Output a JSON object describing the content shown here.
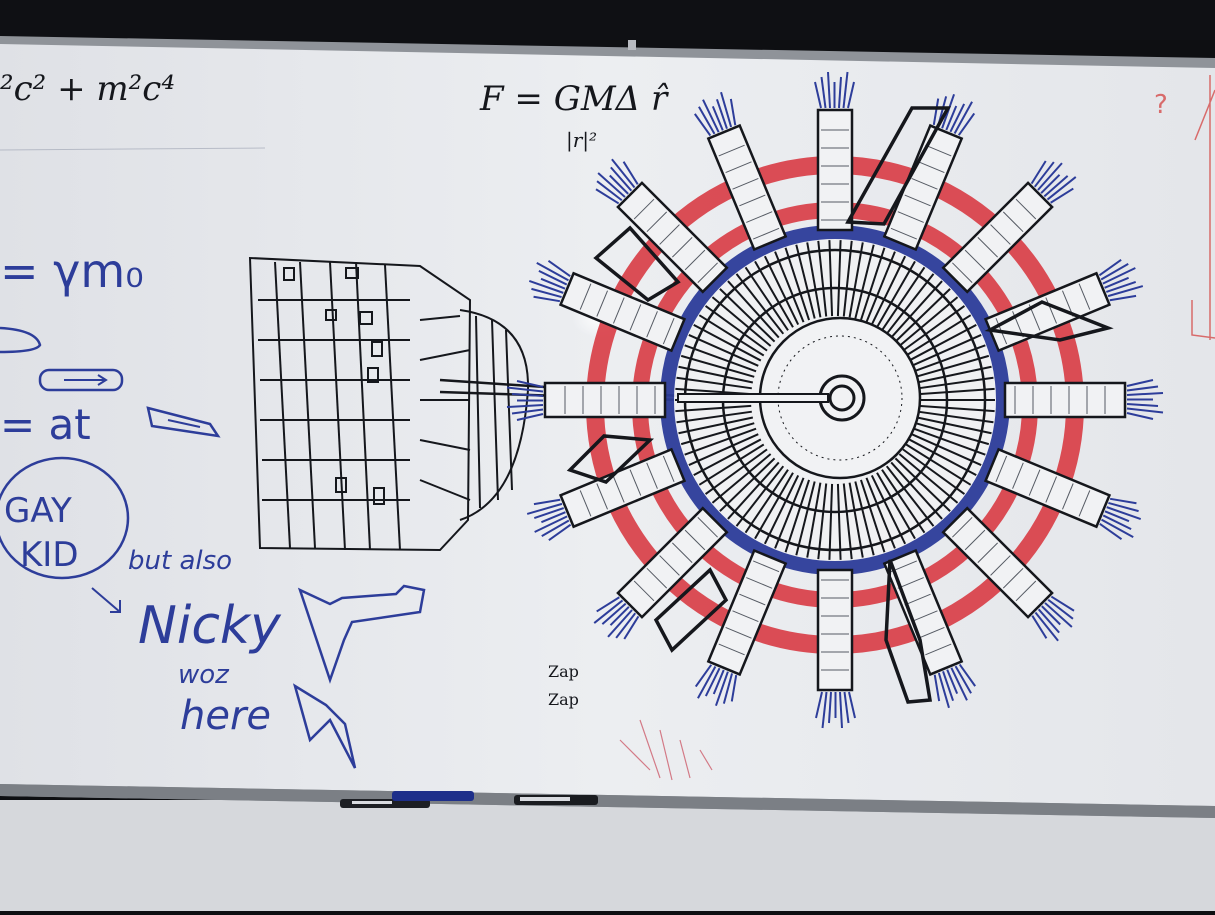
{
  "colors": {
    "board": "#e9ebef",
    "frame": "#9fa2a8",
    "black_ink": "#15171c",
    "blue_ink": "#2d3d9a",
    "red_ink": "#d7303a",
    "background": "#0e0f12"
  },
  "equations": {
    "energy_fragment": "²c² + m²c⁴",
    "gamma_mass": "= γm₀",
    "force_numerator": "F = GMΔ r̂",
    "force_denominator": "|r|²",
    "accel": "= at"
  },
  "doodles": {
    "circled_label_line1": "GAY",
    "circled_label_line2": "KID",
    "but_also": "but also",
    "name": "Nicky",
    "was": "woz",
    "here": "here",
    "zap_1": "Zap",
    "zap_2": "Zap",
    "question": "?"
  },
  "icons": [
    "whiteboard-frame",
    "rocket-arrow-icon",
    "marker-icon",
    "space-station-drawing",
    "cylinder-ship-drawing"
  ]
}
